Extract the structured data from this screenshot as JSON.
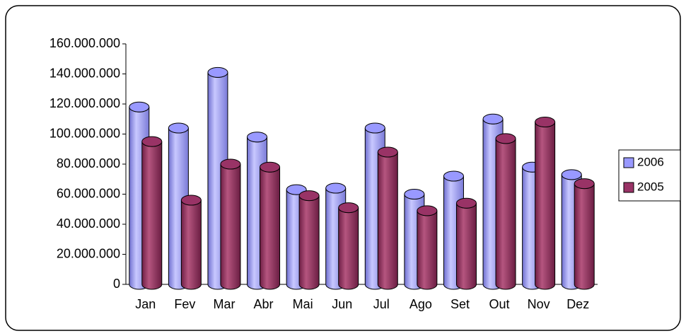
{
  "chart_data": {
    "type": "bar",
    "categories": [
      "Jan",
      "Fev",
      "Mar",
      "Abr",
      "Mai",
      "Jun",
      "Jul",
      "Ago",
      "Set",
      "Out",
      "Nov",
      "Dez"
    ],
    "series": [
      {
        "name": "2006",
        "color": "#9999ff",
        "values": [
          118000000,
          104000000,
          141000000,
          98000000,
          63000000,
          64000000,
          104000000,
          60000000,
          72000000,
          110000000,
          78000000,
          73000000
        ]
      },
      {
        "name": "2005",
        "color": "#993366",
        "values": [
          95000000,
          56000000,
          80000000,
          78000000,
          59000000,
          51000000,
          88000000,
          49000000,
          54000000,
          97000000,
          108000000,
          67000000
        ]
      }
    ],
    "ylim": [
      0,
      160000000
    ],
    "yticks": [
      0,
      {
        "value": 20000000,
        "label": "20.000.000"
      },
      {
        "value": 40000000,
        "label": "40.000.000"
      },
      {
        "value": 60000000,
        "label": "60.000.000"
      },
      {
        "value": 80000000,
        "label": "80.000.000"
      },
      {
        "value": 100000000,
        "label": "100.000.000"
      },
      {
        "value": 120000000,
        "label": "120.000.000"
      },
      {
        "value": 140000000,
        "label": "140.000.000"
      },
      {
        "value": 160000000,
        "label": "160.000.000"
      }
    ],
    "legend_position": "right"
  }
}
